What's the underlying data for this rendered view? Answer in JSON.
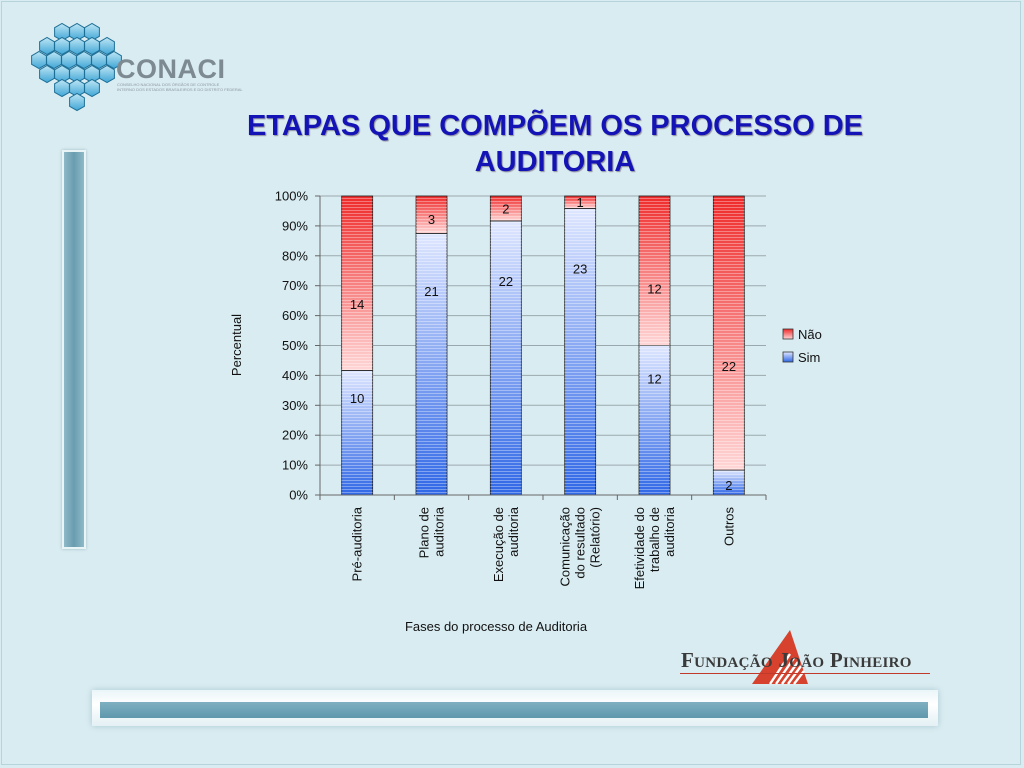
{
  "logo_conaci": {
    "name": "CONACI",
    "subtitle_line1": "CONSELHO NACIONAL DOS ÓRGÃOS DE CONTROLE",
    "subtitle_line2": "INTERNO DOS ESTADOS BRASILEIROS E DO DISTRITO FEDERAL"
  },
  "logo_fjp": {
    "name": "Fundação João Pinheiro"
  },
  "colors": {
    "nao": "#ef2a2a",
    "sim": "#2f67e6",
    "title": "#1413b5"
  },
  "chart_data": {
    "type": "bar",
    "stacked": true,
    "percent": true,
    "title_line1": "ETAPAS QUE COMPÕEM OS PROCESSO DE",
    "title_line2": "AUDITORIA",
    "xlabel": "Fases do processo de Auditoria",
    "ylabel": "Percentual",
    "ylim": [
      0,
      100
    ],
    "yticks": [
      "0%",
      "10%",
      "20%",
      "30%",
      "40%",
      "50%",
      "60%",
      "70%",
      "80%",
      "90%",
      "100%"
    ],
    "grid": true,
    "legend_position": "right",
    "categories": [
      [
        "Pré-auditoria"
      ],
      [
        "Plano de",
        "auditoria"
      ],
      [
        "Execução de",
        "auditoria"
      ],
      [
        "Comunicação",
        "do resultado",
        "(Relatório)"
      ],
      [
        "Efetividade do",
        "trabalho de",
        "auditoria"
      ],
      [
        "Outros"
      ]
    ],
    "series": [
      {
        "name": "Sim",
        "values": [
          10,
          21,
          22,
          23,
          12,
          2
        ]
      },
      {
        "name": "Não",
        "values": [
          14,
          3,
          2,
          1,
          12,
          22
        ]
      }
    ]
  }
}
